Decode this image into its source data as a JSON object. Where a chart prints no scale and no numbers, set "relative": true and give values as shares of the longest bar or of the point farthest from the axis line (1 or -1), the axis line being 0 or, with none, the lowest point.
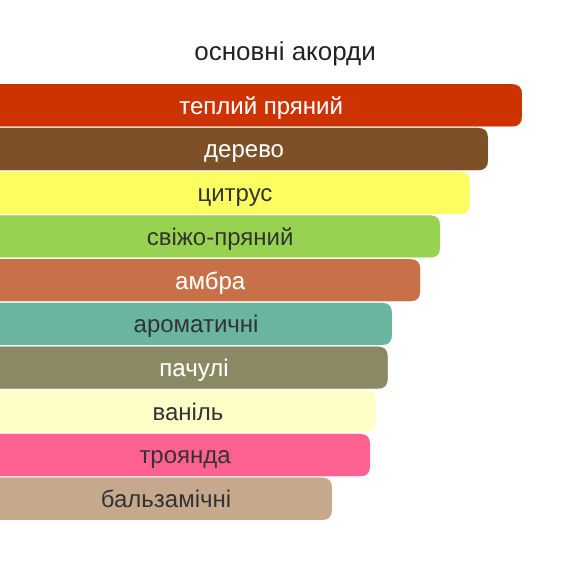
{
  "chart_data": {
    "type": "bar",
    "orientation": "horizontal",
    "relative": true,
    "title": "основні акорди",
    "categories": [
      "теплий пряний",
      "дерево",
      "цитрус",
      "свіжо-пряний",
      "амбра",
      "ароматичні",
      "пачулі",
      "ваніль",
      "троянда",
      "бальзамічні"
    ],
    "values": [
      1,
      0.935,
      0.9,
      0.843,
      0.805,
      0.751,
      0.743,
      0.72,
      0.709,
      0.636
    ],
    "colors": [
      "#cc3300",
      "#7d5028",
      "#fbfd60",
      "#97d350",
      "#c87148",
      "#6ab5a0",
      "#8a8963",
      "#fefec8",
      "#ff6291",
      "#c6a98d"
    ]
  }
}
